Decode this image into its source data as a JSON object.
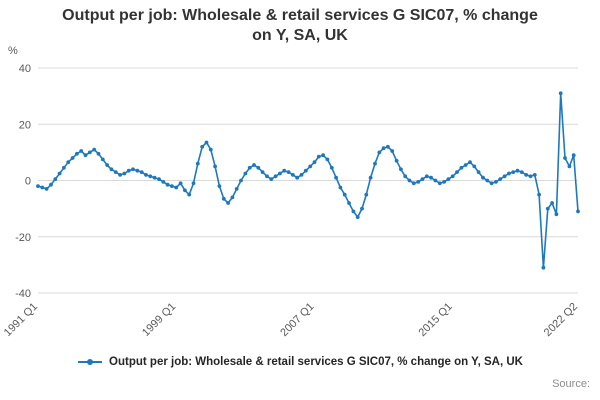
{
  "title": "Output per job: Wholesale & retail services G SIC07, % change on Y, SA, UK",
  "legend_label": "Output per job: Wholesale & retail services G SIC07, % change on Y, SA, UK",
  "source_label": "Source:",
  "colors": {
    "line": "#1e78be",
    "grid": "#d9d9d9",
    "axis_text": "#595959",
    "title_text": "#333333"
  },
  "chart_data": {
    "type": "line",
    "title": "Output per job: Wholesale & retail services G SIC07, % change on Y, SA, UK",
    "xlabel": "",
    "ylabel": "%",
    "ylim": [
      -40,
      40
    ],
    "yticks": [
      40,
      20,
      0,
      -20,
      -40
    ],
    "grid": "horizontal",
    "legend_position": "bottom",
    "marker": "circle",
    "x_start": "1991 Q1",
    "x_end": "2022 Q2",
    "x_frequency": "quarterly",
    "x_ticks": [
      {
        "index": 0,
        "label": "1991 Q1"
      },
      {
        "index": 32,
        "label": "1999 Q1"
      },
      {
        "index": 64,
        "label": "2007 Q1"
      },
      {
        "index": 96,
        "label": "2015 Q1"
      },
      {
        "index": 125,
        "label": "2022 Q2"
      }
    ],
    "series": [
      {
        "name": "Output per job: Wholesale & retail services G SIC07, % change on Y, SA, UK",
        "color": "#1e78be",
        "values": [
          -2,
          -2.5,
          -3,
          -1.5,
          0.5,
          2.5,
          4.5,
          6.5,
          8,
          9.5,
          10.5,
          9,
          10,
          11,
          9.5,
          7.5,
          5.5,
          4,
          3,
          2,
          2.5,
          3.5,
          4,
          3.5,
          3,
          2,
          1.5,
          1,
          0.5,
          -0.5,
          -1.5,
          -2,
          -2.5,
          -1,
          -3.5,
          -5,
          -1,
          6,
          12,
          13.5,
          11,
          5,
          -2,
          -6.5,
          -8,
          -6,
          -3,
          0,
          2.5,
          4.5,
          5.5,
          4.5,
          3,
          1.5,
          0.5,
          1.5,
          2.5,
          3.5,
          3,
          2,
          1,
          2,
          3.5,
          5,
          6.5,
          8.5,
          9,
          7.5,
          4.5,
          1,
          -2.5,
          -5,
          -8,
          -11,
          -13,
          -10,
          -5,
          1,
          6,
          10,
          11.5,
          12,
          10.5,
          7,
          4,
          1.5,
          0,
          -1,
          -0.5,
          0.5,
          1.5,
          1,
          0,
          -1,
          -0.5,
          0.5,
          1.5,
          3,
          4.5,
          5.5,
          6.5,
          5,
          3,
          1,
          0,
          -1,
          -0.5,
          0.5,
          1.5,
          2.5,
          3,
          3.5,
          3,
          2,
          1.5,
          2,
          -5,
          -31,
          -10,
          -8,
          -12,
          31,
          8,
          5,
          9,
          -11
        ]
      }
    ]
  }
}
